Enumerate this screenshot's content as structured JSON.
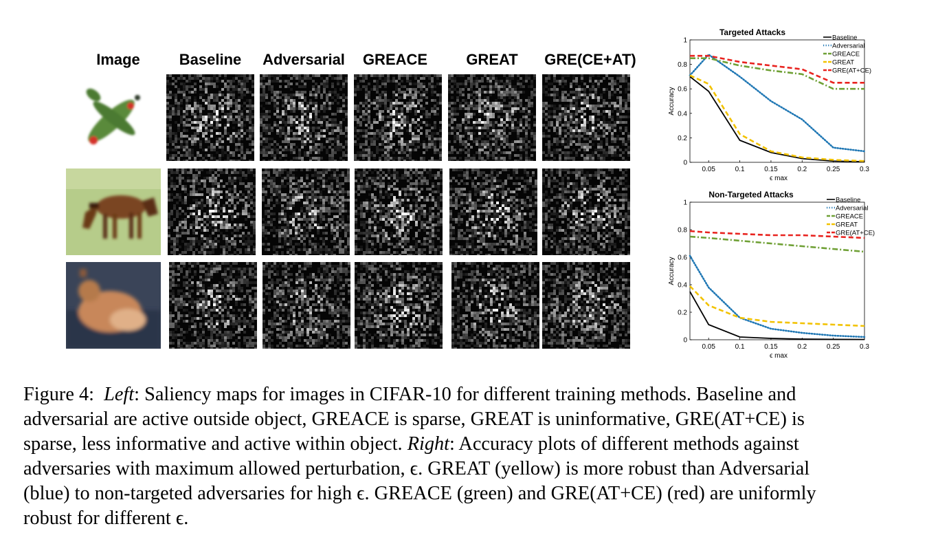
{
  "figure": {
    "column_headers": [
      "Image",
      "Baseline",
      "Adversarial",
      "GREACE",
      "GREAT",
      "GRE(CE+AT)"
    ],
    "rows": [
      "airplane",
      "horse",
      "cat"
    ]
  },
  "colors": {
    "baseline": "#000000",
    "adversarial": "#1f77b4",
    "greace": "#6fa035",
    "great": "#f2c200",
    "gre": "#e8231f"
  },
  "caption": {
    "label": "Figure 4:",
    "left_label": "Left",
    "text1": ": Saliency maps for images in CIFAR-10 for different training methods. Baseline and",
    "line2": "adversarial are active outside object, GREACE is sparse, GREAT is uninformative, GRE(AT+CE) is",
    "line3a": "sparse, less informative and active within object. ",
    "right_label": "Right",
    "line3b": ": Accuracy plots of different methods against",
    "line4": "adversaries with maximum allowed perturbation, ϵ. GREAT (yellow) is more robust than Adversarial",
    "line5": "(blue) to non-targeted adversaries for high ϵ. GREACE (green) and GRE(AT+CE) (red) are uniformly",
    "line6": "robust for different ϵ."
  },
  "chart_data": [
    {
      "type": "line",
      "title": "Targeted Attacks",
      "xlabel": "ϵ max",
      "ylabel": "Accuracy",
      "xlim": [
        0.02,
        0.3
      ],
      "ylim": [
        0,
        1
      ],
      "xticks": [
        "0.05",
        "0.1",
        "0.15",
        "0.2",
        "0.25",
        "0.3"
      ],
      "yticks": [
        "0",
        "0.2",
        "0.4",
        "0.6",
        "0.8",
        "1"
      ],
      "legend_position": "top-right",
      "x": [
        0.02,
        0.05,
        0.1,
        0.15,
        0.2,
        0.25,
        0.3
      ],
      "series": [
        {
          "name": "Baseline",
          "style": "solid",
          "color": "#000000",
          "values": [
            0.7,
            0.58,
            0.18,
            0.08,
            0.03,
            0.01,
            0.005
          ]
        },
        {
          "name": "Adversarial",
          "style": "dotted",
          "color": "#1f77b4",
          "values": [
            0.71,
            0.88,
            0.7,
            0.5,
            0.35,
            0.12,
            0.09
          ]
        },
        {
          "name": "GREACE",
          "style": "dashdot",
          "color": "#6fa035",
          "values": [
            0.85,
            0.85,
            0.79,
            0.75,
            0.72,
            0.6,
            0.6
          ]
        },
        {
          "name": "GREAT",
          "style": "dashed",
          "color": "#f2c200",
          "values": [
            0.71,
            0.64,
            0.23,
            0.09,
            0.04,
            0.02,
            0.01
          ]
        },
        {
          "name": "GRE(AT+CE)",
          "style": "dashed",
          "color": "#e8231f",
          "values": [
            0.87,
            0.87,
            0.82,
            0.79,
            0.76,
            0.65,
            0.65
          ]
        }
      ]
    },
    {
      "type": "line",
      "title": "Non-Targeted Attacks",
      "xlabel": "ϵ max",
      "ylabel": "Accuracy",
      "xlim": [
        0.02,
        0.3
      ],
      "ylim": [
        0,
        1
      ],
      "xticks": [
        "0.05",
        "0.1",
        "0.15",
        "0.2",
        "0.25",
        "0.3"
      ],
      "yticks": [
        "0",
        "0.2",
        "0.4",
        "0.6",
        "0.8",
        "1"
      ],
      "legend_position": "top-right",
      "x": [
        0.02,
        0.05,
        0.1,
        0.15,
        0.2,
        0.25,
        0.3
      ],
      "series": [
        {
          "name": "Baseline",
          "style": "solid",
          "color": "#000000",
          "values": [
            0.35,
            0.11,
            0.02,
            0.01,
            0.005,
            0.003,
            0.002
          ]
        },
        {
          "name": "Adversarial",
          "style": "dotted",
          "color": "#1f77b4",
          "values": [
            0.61,
            0.38,
            0.16,
            0.08,
            0.05,
            0.03,
            0.02
          ]
        },
        {
          "name": "GREACE",
          "style": "dashdot",
          "color": "#6fa035",
          "values": [
            0.75,
            0.74,
            0.72,
            0.7,
            0.68,
            0.66,
            0.64
          ]
        },
        {
          "name": "GREAT",
          "style": "dashed",
          "color": "#f2c200",
          "values": [
            0.39,
            0.25,
            0.16,
            0.13,
            0.12,
            0.11,
            0.1
          ]
        },
        {
          "name": "GRE(AT+CE)",
          "style": "dashed",
          "color": "#e8231f",
          "values": [
            0.79,
            0.78,
            0.77,
            0.76,
            0.76,
            0.75,
            0.74
          ]
        }
      ]
    }
  ]
}
